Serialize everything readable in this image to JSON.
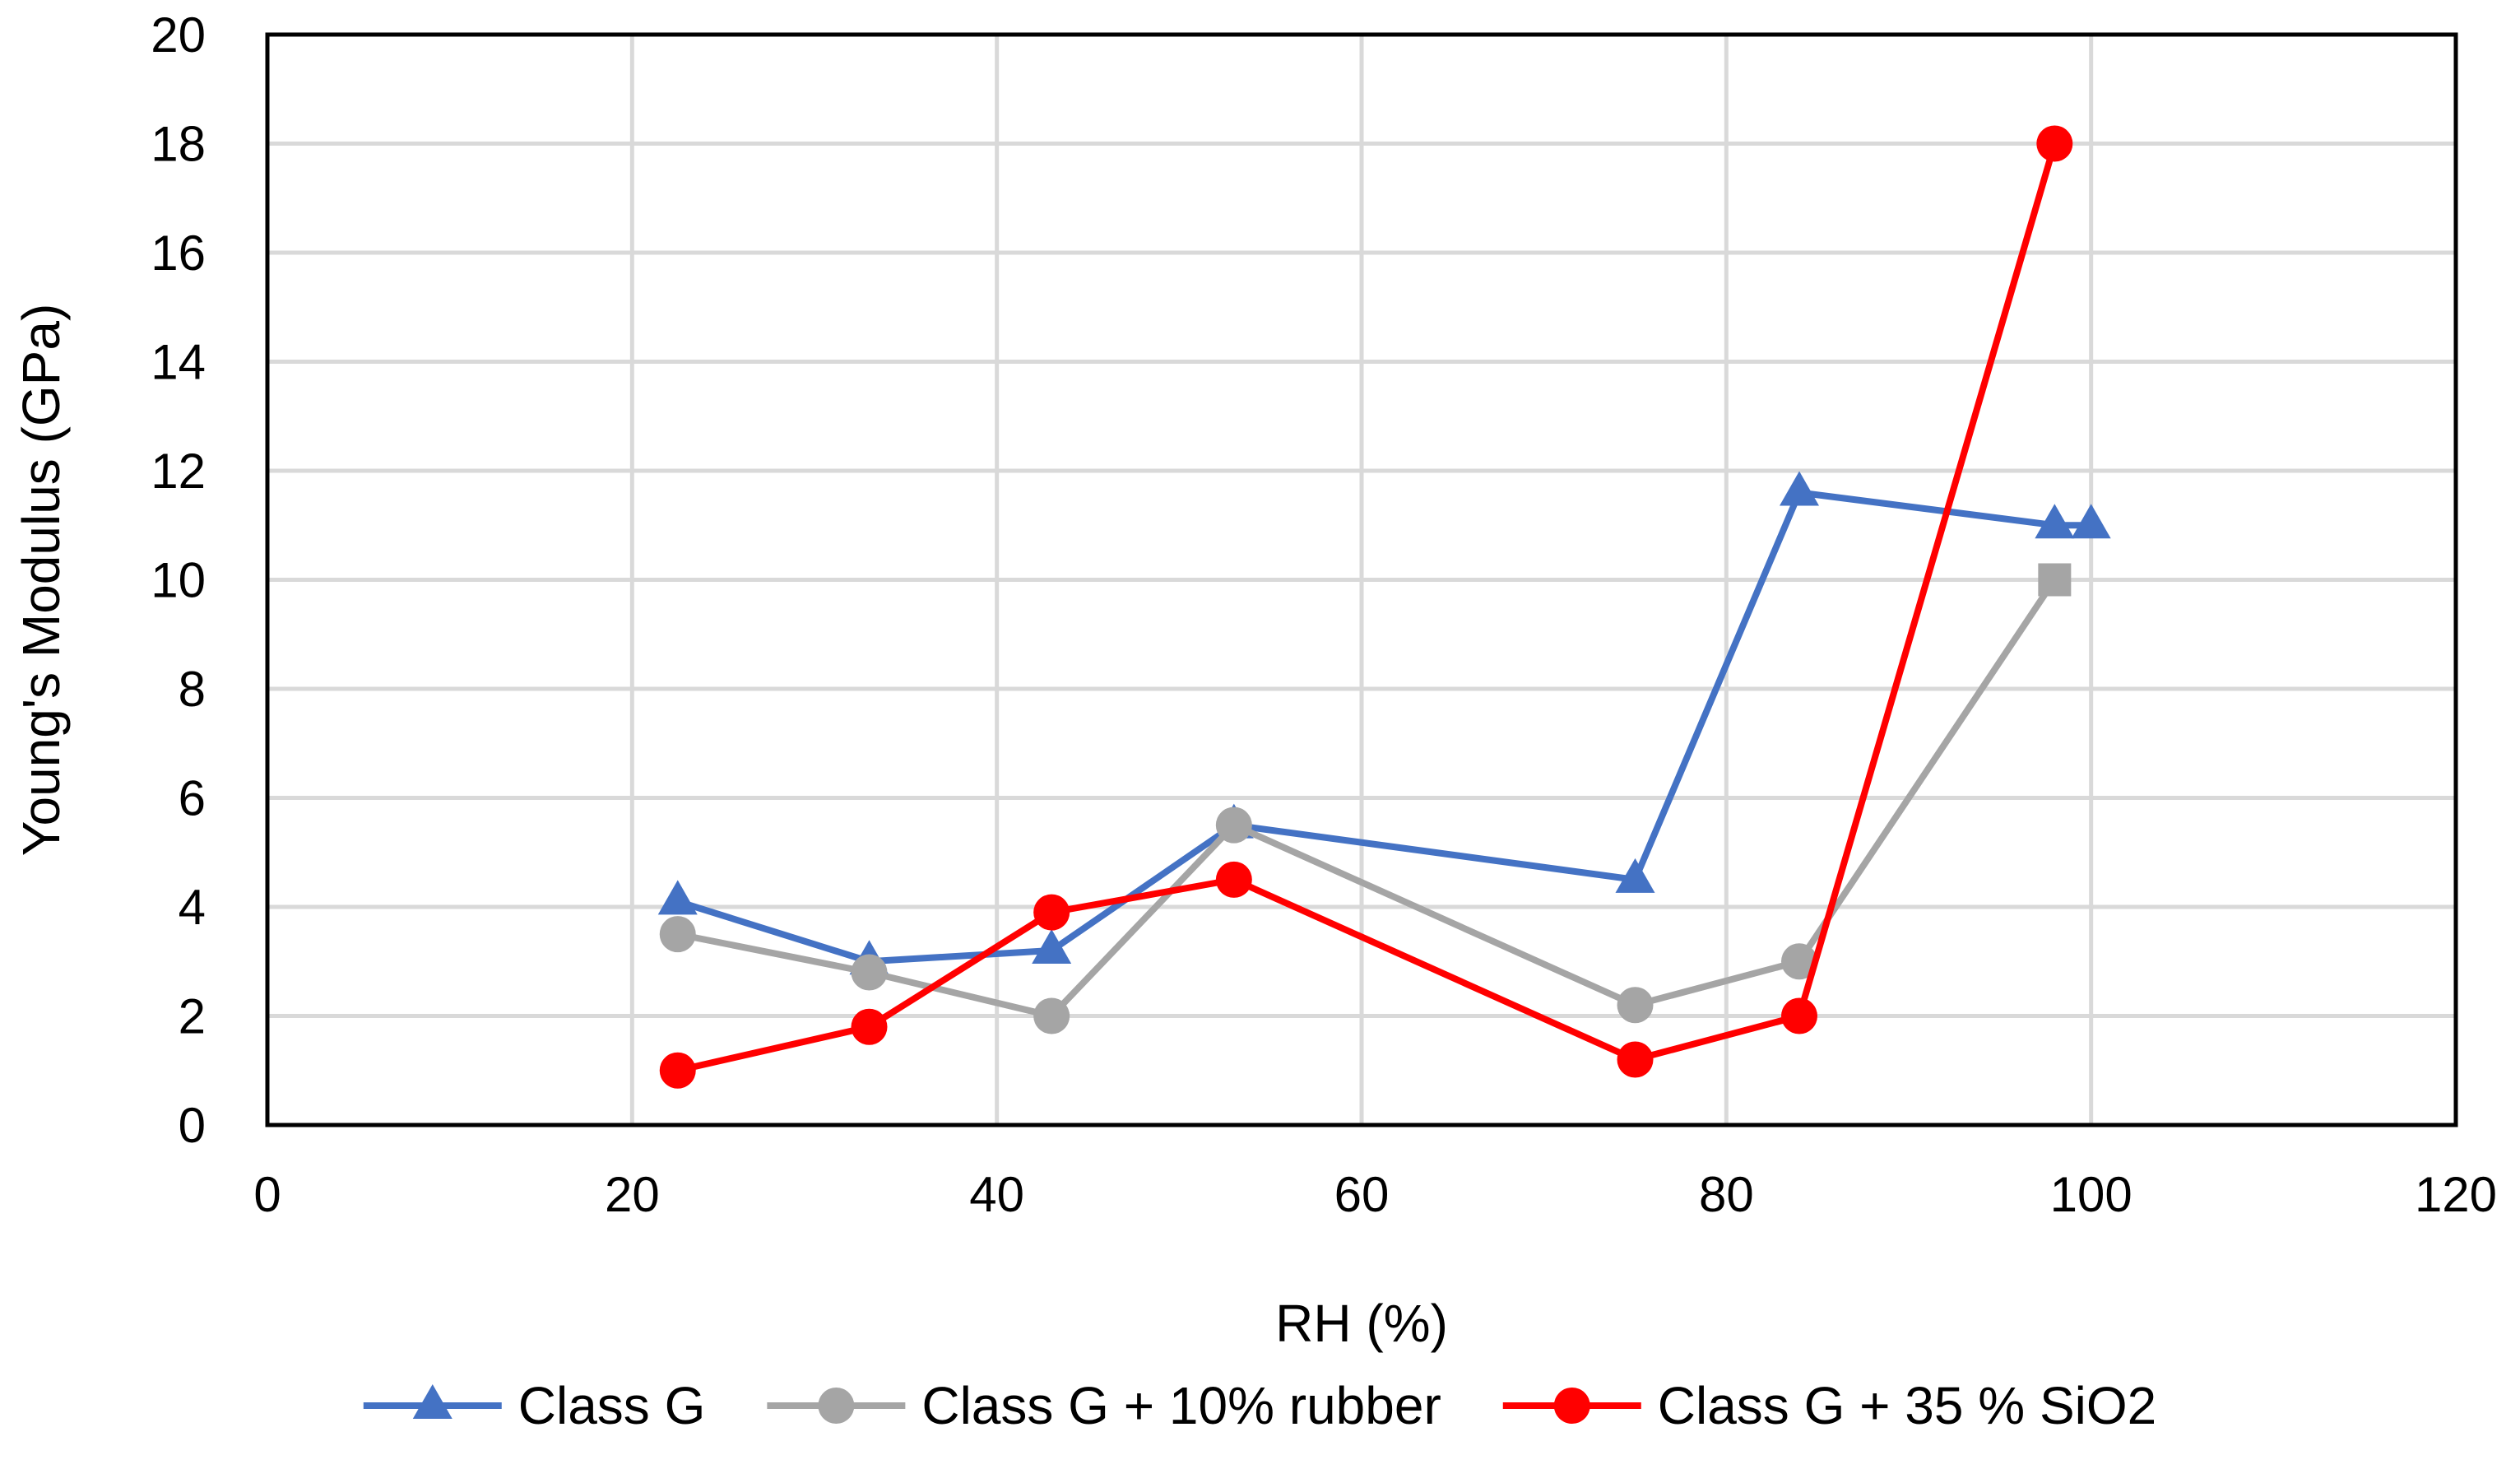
{
  "chart_data": {
    "type": "scatter",
    "title": "",
    "xlabel": "RH (%)",
    "ylabel": "Young's Modulus (GPa)",
    "xlim": [
      0,
      120
    ],
    "ylim": [
      0,
      20
    ],
    "x_ticks": [
      0,
      20,
      40,
      60,
      80,
      100,
      120
    ],
    "y_ticks": [
      0,
      2,
      4,
      6,
      8,
      10,
      12,
      14,
      16,
      18,
      20
    ],
    "grid": true,
    "legend_position": "bottom",
    "series": [
      {
        "name": "Class G",
        "color": "#4472C4",
        "marker": "triangle",
        "x": [
          22.5,
          33,
          43,
          53,
          75,
          84,
          98,
          100
        ],
        "y": [
          4.1,
          3.0,
          3.2,
          5.5,
          4.5,
          11.6,
          11.0,
          11.0
        ]
      },
      {
        "name": "Class G + 10% rubber",
        "color": "#A5A5A5",
        "marker": "circle",
        "x": [
          22.5,
          33,
          43,
          53,
          75,
          84,
          98
        ],
        "y": [
          3.5,
          2.8,
          2.0,
          5.5,
          2.2,
          3.0,
          10.0
        ],
        "marker_overrides": {
          "6": "square"
        }
      },
      {
        "name": "Class G + 35 % SiO2",
        "color": "#FF0000",
        "marker": "circle",
        "x": [
          22.5,
          33,
          43,
          53,
          75,
          84,
          98
        ],
        "y": [
          1.0,
          1.8,
          3.9,
          4.5,
          1.2,
          2.0,
          18.0
        ]
      }
    ]
  }
}
